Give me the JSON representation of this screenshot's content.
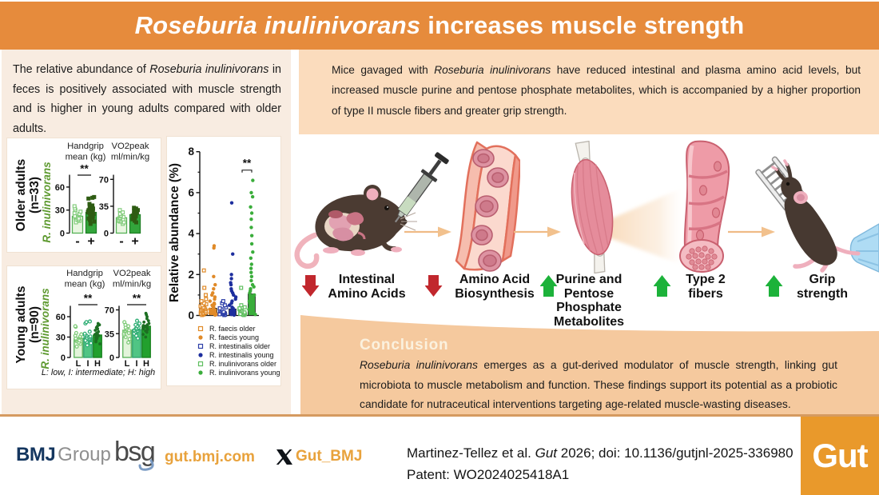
{
  "header": {
    "title_italic": "Roseburia inulinivorans",
    "title_rest": "increases muscle strength"
  },
  "left_panel": {
    "intro": [
      {
        "t": "The relative abundance of "
      },
      {
        "t": "Roseburia inulinivorans",
        "i": 1
      },
      {
        "t": " in feces is positively associated with muscle strength and is higher in young adults compared with older adults."
      }
    ]
  },
  "right_panel": {
    "text": [
      {
        "t": "Mice gavaged with "
      },
      {
        "t": "Roseburia inulinivorans",
        "i": 1
      },
      {
        "t": " have reduced intestinal and plasma amino acid levels, but increased muscle purine and pentose phosphate metabolites, which is accompanied by a higher proportion of type II muscle fibers and greater grip strength."
      }
    ]
  },
  "flow": {
    "steps": [
      {
        "illustration": "mouse-gavage",
        "direction": "down",
        "arrow_color": "#C1272D",
        "label": [
          "Intestinal",
          "Amino Acids"
        ]
      },
      {
        "illustration": "gut-vessel",
        "direction": "down",
        "arrow_color": "#C1272D",
        "label": [
          "Amino Acid",
          "Biosynthesis"
        ]
      },
      {
        "illustration": "muscle",
        "direction": "up",
        "arrow_color": "#1CB23A",
        "label": [
          "Purine and",
          "Pentose",
          "Phosphate",
          "Metabolites"
        ]
      },
      {
        "illustration": "muscle-fiber",
        "direction": "up",
        "arrow_color": "#1CB23A",
        "label": [
          "Type 2",
          "fibers"
        ]
      },
      {
        "illustration": "mouse-grip",
        "direction": "up",
        "arrow_color": "#1CB23A",
        "label": [
          "Grip",
          "strength"
        ]
      }
    ]
  },
  "conclusion": {
    "title": "Conclusion",
    "text": [
      {
        "t": "Roseburia inulinivorans",
        "i": 1
      },
      {
        "t": " emerges as a gut-derived modulator of muscle strength, linking gut microbiota to muscle metabolism and function. These findings support its potential as a probiotic candidate for nutraceutical interventions targeting age-related muscle-wasting diseases."
      }
    ]
  },
  "footer": {
    "bmj": "BMJ",
    "group": "Group",
    "bsg": "bsg",
    "site": "gut.bmj.com",
    "x_handle": "Gut_BMJ",
    "citation": [
      {
        "t": "Martinez-Tellez et al. "
      },
      {
        "t": "Gut",
        "i": 1
      },
      {
        "t": " 2026; doi: 10.1136/gutjnl-2025-336980"
      }
    ],
    "patent": "Patent: WO2024025418A1",
    "journal": "Gut"
  },
  "chart_data": [
    {
      "type": "bar",
      "name": "older-adults",
      "group_label": [
        "Older adults",
        "(n=33)"
      ],
      "y_axis_label": "R. inulinivorans",
      "y_axis_label_color": "#5E9A30",
      "panels": [
        {
          "title": [
            "Handgrip",
            "mean (kg)"
          ],
          "ylim": [
            0,
            76
          ],
          "yticks": [
            0,
            30,
            60
          ],
          "sig": "**",
          "bars": [
            {
              "label": "-",
              "value": 22,
              "fill": "#E9F6E1",
              "stroke": "#56B257",
              "marker": "square",
              "marker_filled": false,
              "marker_color": "#85CD7E",
              "points": [
                14,
                16,
                17,
                18,
                19,
                20,
                21,
                22,
                23,
                24,
                25,
                26,
                28,
                30,
                32,
                35
              ]
            },
            {
              "label": "+",
              "value": 27,
              "fill": "#33A53B",
              "stroke": "#1E7F26",
              "marker": "square",
              "marker_filled": true,
              "marker_color": "#2E5C13",
              "points": [
                12,
                15,
                17,
                19,
                20,
                21,
                22,
                23,
                24,
                25,
                26,
                27,
                28,
                29,
                30,
                31,
                32,
                33,
                34,
                35,
                36,
                38,
                45,
                46,
                47
              ]
            }
          ]
        },
        {
          "title": [
            "VO2peak",
            "ml/min/kg"
          ],
          "ylim": [
            0,
            76
          ],
          "yticks": [
            0,
            35,
            70
          ],
          "sig": null,
          "bars": [
            {
              "label": "-",
              "value": 20,
              "fill": "#E9F6E1",
              "stroke": "#56B257",
              "marker": "square",
              "marker_filled": false,
              "marker_color": "#85CD7E",
              "points": [
                12,
                14,
                15,
                16,
                17,
                18,
                19,
                20,
                21,
                22,
                23,
                25,
                27,
                30
              ]
            },
            {
              "label": "+",
              "value": 24,
              "fill": "#33A53B",
              "stroke": "#1E7F26",
              "marker": "square",
              "marker_filled": true,
              "marker_color": "#2E5C13",
              "points": [
                14,
                16,
                18,
                20,
                21,
                22,
                23,
                24,
                25,
                26,
                27,
                28,
                29,
                30,
                31,
                32,
                33
              ]
            }
          ]
        }
      ]
    },
    {
      "type": "bar",
      "name": "young-adults",
      "group_label": [
        "Young adults",
        "(n=90)"
      ],
      "y_axis_label": "R. inulinivorans",
      "y_axis_label_color": "#5E9A30",
      "caption": "L: low, I: intermediate; H: high",
      "panels": [
        {
          "title": [
            "Handgrip",
            "mean (kg)"
          ],
          "ylim": [
            0,
            76
          ],
          "yticks": [
            0,
            30,
            60
          ],
          "sig": "**",
          "bars": [
            {
              "label": "L",
              "value": 28,
              "fill": "#E2F4DA",
              "stroke": "#55B155",
              "marker": "circle",
              "marker_filled": false,
              "marker_color": "#7FCB79",
              "points": [
                16,
                20,
                22,
                24,
                25,
                26,
                27,
                28,
                29,
                30,
                31,
                32,
                34,
                36,
                45,
                46
              ]
            },
            {
              "label": "I",
              "value": 29,
              "fill": "#50C584",
              "stroke": "#2FA06D",
              "marker": "circle",
              "marker_filled": false,
              "marker_color": "#2FAE75",
              "points": [
                18,
                21,
                23,
                25,
                26,
                27,
                28,
                29,
                30,
                31,
                32,
                33,
                35,
                38,
                50,
                52,
                53
              ]
            },
            {
              "label": "H",
              "value": 33,
              "fill": "#22A02E",
              "stroke": "#15801C",
              "marker": "circle",
              "marker_filled": true,
              "marker_color": "#1C6E22",
              "points": [
                20,
                23,
                25,
                27,
                28,
                29,
                30,
                31,
                32,
                33,
                34,
                35,
                36,
                38,
                40,
                42,
                44,
                46,
                48,
                50
              ]
            }
          ]
        },
        {
          "title": [
            "VO2peak",
            "ml/min/kg"
          ],
          "ylim": [
            0,
            76
          ],
          "yticks": [
            0,
            35,
            70
          ],
          "sig": "**",
          "bars": [
            {
              "label": "L",
              "value": 40,
              "fill": "#E2F4DA",
              "stroke": "#55B155",
              "marker": "circle",
              "marker_filled": false,
              "marker_color": "#7FCB79",
              "points": [
                22,
                27,
                30,
                33,
                35,
                36,
                38,
                39,
                40,
                41,
                42,
                44,
                46,
                48,
                52
              ]
            },
            {
              "label": "I",
              "value": 41,
              "fill": "#50C584",
              "stroke": "#2FA06D",
              "marker": "circle",
              "marker_filled": false,
              "marker_color": "#2FAE75",
              "points": [
                28,
                32,
                35,
                37,
                38,
                39,
                40,
                41,
                42,
                43,
                44,
                46,
                48,
                50,
                54
              ]
            },
            {
              "label": "H",
              "value": 46,
              "fill": "#22A02E",
              "stroke": "#15801C",
              "marker": "circle",
              "marker_filled": true,
              "marker_color": "#1C6E22",
              "points": [
                30,
                34,
                37,
                39,
                41,
                42,
                43,
                44,
                45,
                46,
                47,
                48,
                50,
                52,
                54,
                57,
                60,
                63,
                65
              ]
            }
          ]
        }
      ]
    },
    {
      "type": "scatter-bar",
      "name": "relative-abundance",
      "y_axis_label": "Relative abundance (%)",
      "ylim": [
        0,
        8
      ],
      "yticks": [
        0,
        2,
        4,
        6,
        8
      ],
      "sig": {
        "label": "**",
        "from": 4,
        "to": 5,
        "y": 7.1
      },
      "series": [
        {
          "name": "R. faecis older",
          "color": "#E08A28",
          "marker": "square",
          "filled": false,
          "bar": 0.3,
          "points": [
            0.02,
            0.05,
            0.08,
            0.1,
            0.12,
            0.15,
            0.18,
            0.2,
            0.22,
            0.25,
            0.28,
            0.3,
            0.33,
            0.36,
            0.4,
            0.45,
            0.5,
            0.55,
            0.6,
            0.7,
            0.8,
            1.0,
            1.35,
            2.2
          ]
        },
        {
          "name": "R. faecis young",
          "color": "#E08A28",
          "marker": "circle",
          "filled": true,
          "bar": 0.35,
          "points": [
            0.02,
            0.05,
            0.1,
            0.12,
            0.15,
            0.2,
            0.25,
            0.3,
            0.35,
            0.4,
            0.45,
            0.5,
            0.55,
            0.6,
            0.7,
            0.8,
            0.9,
            1.0,
            1.1,
            1.3,
            1.5,
            1.9,
            3.3,
            3.4
          ]
        },
        {
          "name": "R. intestinalis older",
          "color": "#2D3FA8",
          "marker": "square",
          "filled": false,
          "bar": 0.18,
          "points": [
            0.02,
            0.04,
            0.06,
            0.08,
            0.1,
            0.12,
            0.15,
            0.18,
            0.2,
            0.25,
            0.3,
            0.35,
            0.4,
            0.5,
            0.6,
            0.7
          ]
        },
        {
          "name": "R. intestinalis young",
          "color": "#1D2E9E",
          "marker": "circle",
          "filled": true,
          "bar": 0.32,
          "points": [
            0.02,
            0.05,
            0.1,
            0.15,
            0.2,
            0.25,
            0.3,
            0.35,
            0.4,
            0.5,
            0.6,
            0.7,
            0.8,
            0.9,
            1.0,
            1.1,
            1.2,
            1.3,
            1.5,
            1.6,
            1.8,
            2.0,
            3.0,
            5.5
          ]
        },
        {
          "name": "R. inulinivorans older",
          "color": "#5FBF5F",
          "marker": "square",
          "filled": false,
          "bar": 0.22,
          "points": [
            0.02,
            0.04,
            0.06,
            0.08,
            0.1,
            0.15,
            0.2,
            0.25,
            0.3,
            0.35,
            0.4,
            0.5,
            1.35
          ]
        },
        {
          "name": "R. inulinivorans young",
          "color": "#3AAD3B",
          "marker": "circle",
          "filled": true,
          "bar": 1.05,
          "points": [
            0.05,
            0.1,
            0.2,
            0.3,
            0.4,
            0.5,
            0.6,
            0.7,
            0.8,
            0.9,
            1.0,
            1.1,
            1.2,
            1.3,
            1.4,
            1.5,
            1.7,
            1.9,
            2.1,
            2.3,
            2.5,
            2.8,
            3.1,
            3.5,
            3.9,
            4.3,
            4.7,
            5.0,
            5.3,
            5.8,
            6.0,
            6.6
          ]
        }
      ]
    }
  ]
}
